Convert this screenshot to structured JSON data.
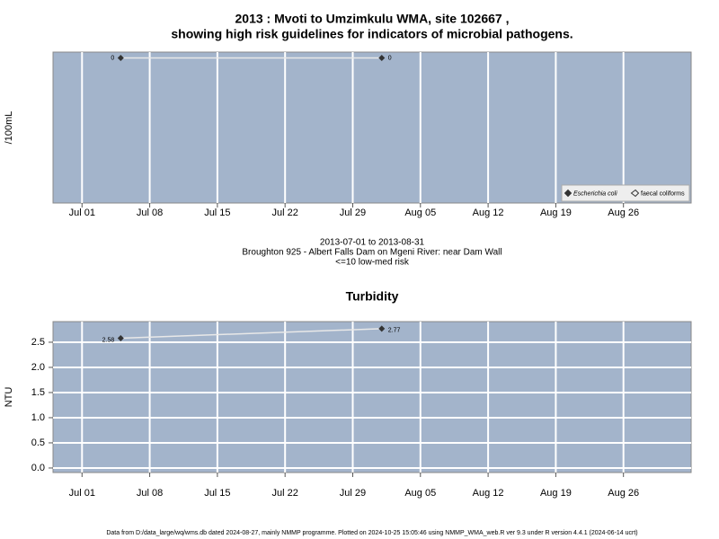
{
  "chart_data": [
    {
      "type": "line",
      "title": [
        "2013 : Mvoti to Umzimkulu WMA, site 102667 ,",
        "showing high risk guidelines for indicators of microbial pathogens."
      ],
      "y_label": "/100mL",
      "x": [
        "Jul 05",
        "Aug 01"
      ],
      "series": [
        {
          "name": "Escherichia coli",
          "color": "#333333",
          "values": [
            0,
            0
          ]
        },
        {
          "name": "faecal coliforms",
          "color": "#333333",
          "values": [
            null,
            null
          ]
        }
      ],
      "xlim": [
        "Jun 28",
        "Sep 02"
      ],
      "xticks": [
        "Jul 01",
        "Jul 08",
        "Jul 15",
        "Jul 22",
        "Jul 29",
        "Aug 05",
        "Aug 12",
        "Aug 19",
        "Aug 26"
      ],
      "ylim": [
        -1,
        0.04
      ],
      "grid": true,
      "legend": "bottom-right",
      "notes": [
        "2013-07-01 to 2013-08-31",
        "Broughton 925 - Albert Falls Dam on Mgeni River: near Dam Wall",
        "<=10 low-med risk"
      ]
    },
    {
      "type": "line",
      "title": [
        "Turbidity"
      ],
      "y_label": "NTU",
      "x": [
        "Jul 05",
        "Aug 01"
      ],
      "series": [
        {
          "name": "Turbidity",
          "color": "#333333",
          "values": [
            2.58,
            2.77
          ]
        }
      ],
      "xlim": [
        "Jun 28",
        "Sep 02"
      ],
      "xticks": [
        "Jul 01",
        "Jul 08",
        "Jul 15",
        "Jul 22",
        "Jul 29",
        "Aug 05",
        "Aug 12",
        "Aug 19",
        "Aug 26"
      ],
      "ylim": [
        -0.09,
        2.91
      ],
      "yticks": [
        {
          "value": 0,
          "label": "0.0"
        },
        {
          "value": 0.5,
          "label": "0.5"
        },
        {
          "value": 1,
          "label": "1.0"
        },
        {
          "value": 1.5,
          "label": "1.5"
        },
        {
          "value": 2,
          "label": "2.0"
        },
        {
          "value": 2.5,
          "label": "2.5"
        }
      ],
      "grid": true
    }
  ],
  "footer": "Data from D:/data_large/wq/wms.db dated 2024-08-27, mainly NMMP programme. Plotted on 2024-10-25 15:05:46 using NMMP_WMA_web.R ver 9.3 under R version 4.4.1 (2024-06-14 ucrt)"
}
